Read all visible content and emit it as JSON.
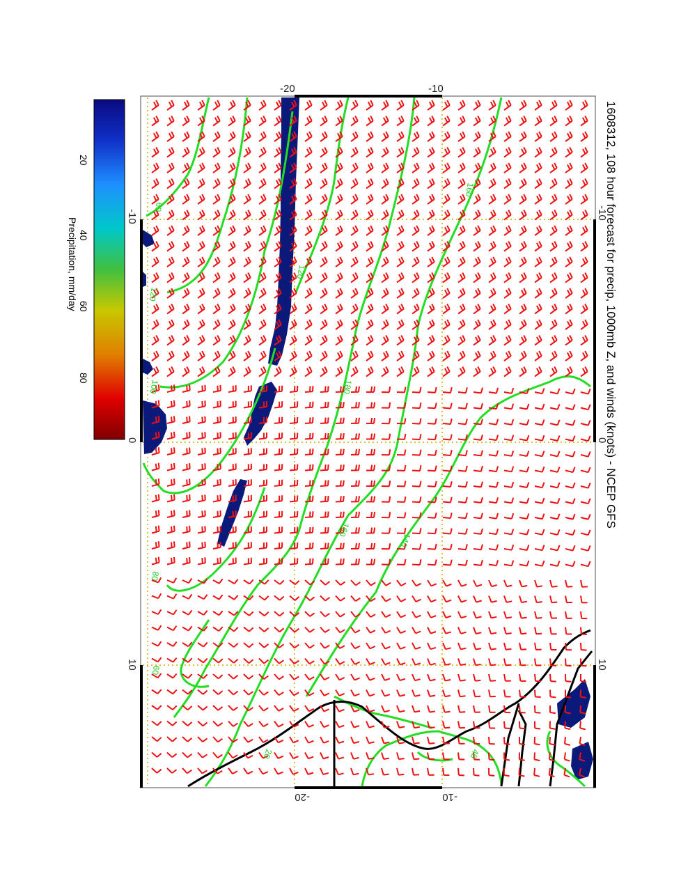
{
  "title": "1608312, 108 hour forecast for precip, 1000mb Z, and winds (knots) - NCEP GFS",
  "colorbar": {
    "label": "Precipitation, mm/day",
    "ticks": [
      "20",
      "40",
      "60",
      "80"
    ],
    "tick_values": [
      20,
      40,
      60,
      80
    ],
    "range": [
      0,
      100
    ],
    "stops": [
      "#0a0a80",
      "#1030c8",
      "#1e90ff",
      "#00c8c8",
      "#40c040",
      "#c8c800",
      "#e08000",
      "#e00000",
      "#800000"
    ]
  },
  "longitude_ticks": [
    "-10",
    "0",
    "10"
  ],
  "latitude_ticks": [
    "-20",
    "-10"
  ],
  "contour_labels": [
    "160",
    "180",
    "160",
    "140",
    "120",
    "120",
    "100",
    "80",
    "60",
    "20",
    "40",
    "60"
  ],
  "colors": {
    "contour": "#22dd22",
    "wind_barb": "#ee1111",
    "precip": "#0b1a7a",
    "coast": "#000000",
    "grid": "#d4a800"
  },
  "map": {
    "projection": "rotated",
    "lon_range": [
      -15,
      15
    ],
    "lat_range": [
      -30,
      0
    ],
    "content": "1000mb geopotential height contours (green), wind barbs in knots (red), precipitation shading (blue)"
  }
}
